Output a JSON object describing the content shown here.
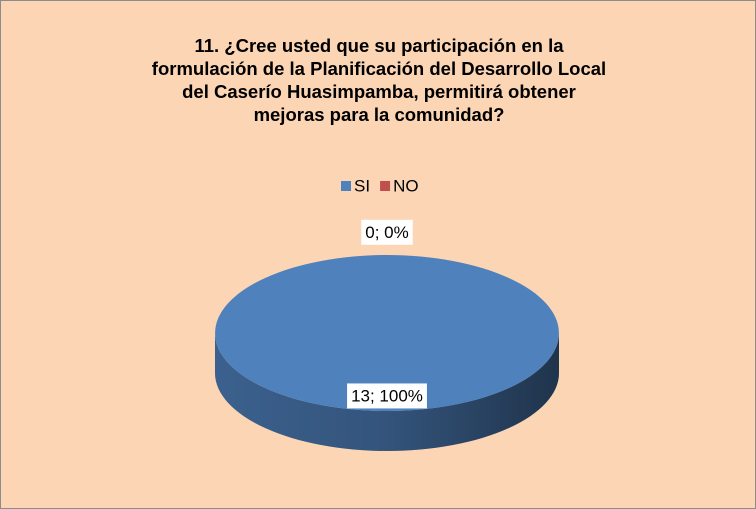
{
  "chart_data": {
    "type": "pie",
    "title": "11. ¿Cree usted que su participación en la formulación de la Planificación del Desarrollo Local del Caserío Huasimpamba, permitirá obtener mejoras para la comunidad?",
    "categories": [
      "SI",
      "NO"
    ],
    "values": [
      13,
      0
    ],
    "value_labels": [
      "13; 100%",
      "0; 0%"
    ],
    "colors": [
      "#4F81BD",
      "#C0504D"
    ],
    "legend": "top"
  }
}
